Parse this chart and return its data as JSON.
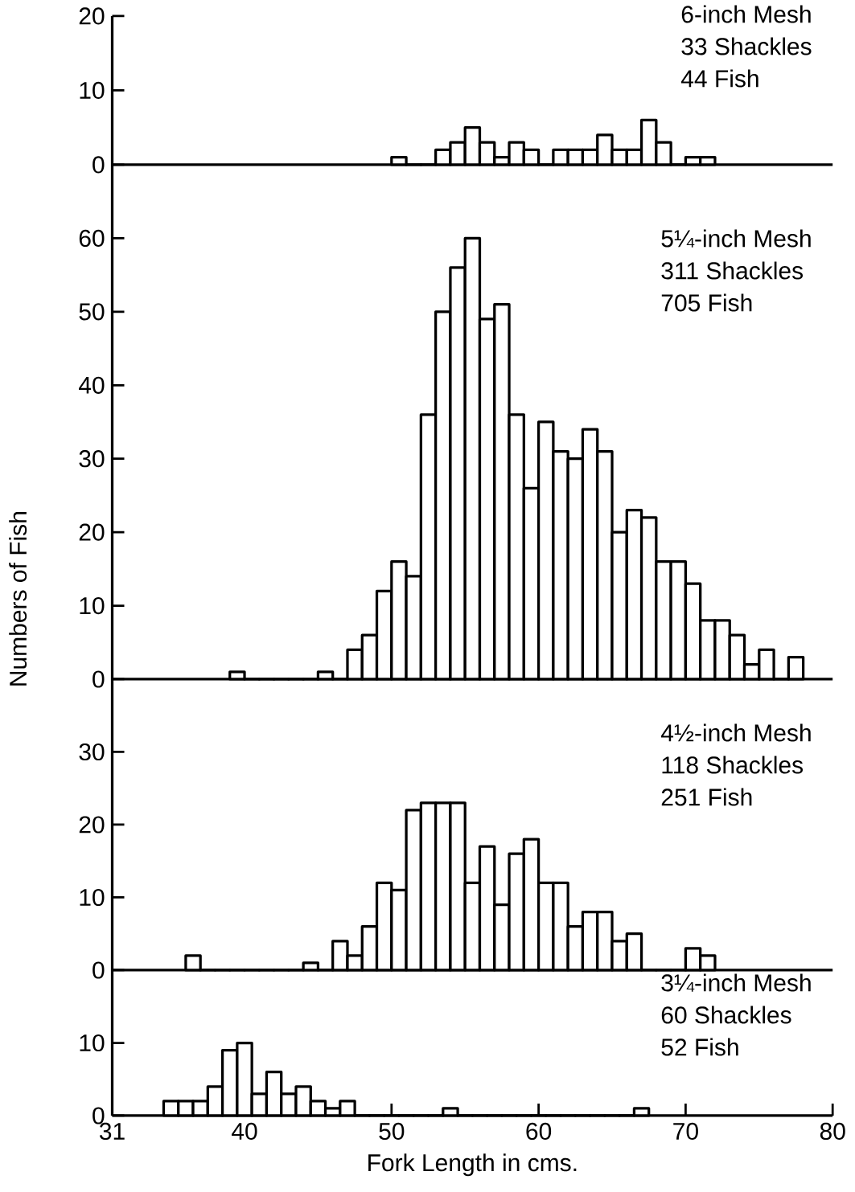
{
  "chart_data": [
    {
      "type": "histogram",
      "color": "#000000",
      "bins": [
        50,
        51,
        52,
        53,
        54,
        55,
        56,
        57,
        58,
        59,
        60,
        61,
        62,
        63,
        64,
        65,
        66,
        67,
        68,
        69,
        70,
        71,
        72
      ],
      "values": [
        1,
        0,
        0,
        2,
        3,
        5,
        3,
        1,
        3,
        2,
        0,
        2,
        2,
        2,
        4,
        2,
        2,
        6,
        3,
        0,
        1,
        1
      ],
      "xlim": [
        31,
        80
      ],
      "ylim": [
        0,
        20
      ],
      "xticks": [
        31,
        40,
        50,
        60,
        70,
        80
      ],
      "yticks": [
        0,
        10,
        20
      ],
      "tick_labels": "y",
      "annotations": [
        "6-inch Mesh",
        "33 Shackles",
        "44 Fish"
      ]
    },
    {
      "type": "histogram",
      "color": "#000000",
      "bins": [
        39,
        40,
        41,
        42,
        43,
        44,
        45,
        46,
        47,
        48,
        49,
        50,
        51,
        52,
        53,
        54,
        55,
        56,
        57,
        58,
        59,
        60,
        61,
        62,
        63,
        64,
        65,
        66,
        67,
        68,
        69,
        70,
        71,
        72,
        73,
        74,
        75,
        76,
        77,
        78
      ],
      "values": [
        1,
        0,
        0,
        0,
        0,
        0,
        1,
        0,
        4,
        6,
        12,
        16,
        14,
        36,
        50,
        56,
        60,
        49,
        51,
        36,
        26,
        35,
        31,
        30,
        34,
        31,
        20,
        23,
        22,
        16,
        16,
        13,
        8,
        8,
        6,
        2,
        4,
        0,
        3
      ],
      "xlim": [
        31,
        80
      ],
      "ylim": [
        0,
        70
      ],
      "xticks": [
        31,
        40,
        50,
        60,
        70,
        80
      ],
      "yticks": [
        0,
        10,
        20,
        30,
        40,
        50,
        60
      ],
      "tick_labels": "y",
      "ylabel": "Numbers of Fish",
      "annotations": [
        "5¼-inch Mesh",
        "311 Shackles",
        "705 Fish"
      ]
    },
    {
      "type": "histogram",
      "color": "#000000",
      "bins": [
        36,
        37,
        38,
        39,
        40,
        41,
        42,
        43,
        44,
        45,
        46,
        47,
        48,
        49,
        50,
        51,
        52,
        53,
        54,
        55,
        56,
        57,
        58,
        59,
        60,
        61,
        62,
        63,
        64,
        65,
        66,
        67,
        68,
        69,
        70,
        71,
        72
      ],
      "values": [
        2,
        0,
        0,
        0,
        0,
        0,
        0,
        0,
        1,
        0,
        4,
        2,
        6,
        12,
        11,
        22,
        23,
        23,
        23,
        12,
        17,
        9,
        16,
        18,
        12,
        12,
        6,
        8,
        8,
        4,
        5,
        0,
        0,
        0,
        3,
        2
      ],
      "xlim": [
        31,
        80
      ],
      "ylim": [
        0,
        40
      ],
      "xticks": [
        31,
        40,
        50,
        60,
        70,
        80
      ],
      "yticks": [
        0,
        10,
        20,
        30
      ],
      "tick_labels": "y",
      "annotations": [
        "4½-inch Mesh",
        "118 Shackles",
        "251 Fish"
      ]
    },
    {
      "type": "histogram",
      "color": "#000000",
      "bins": [
        34.5,
        35.5,
        36.5,
        37.5,
        38.5,
        39.5,
        40.5,
        41.5,
        42.5,
        43.5,
        44.5,
        45.5,
        46.5,
        47.5,
        48.5,
        49.5,
        50.5,
        51.5,
        52.5,
        53.5,
        54.5,
        55.5,
        56.5,
        57.5,
        58.5,
        59.5,
        60.5,
        61.5,
        62.5,
        63.5,
        64.5,
        65.5,
        66.5,
        67.5
      ],
      "values": [
        2,
        2,
        2,
        4,
        9,
        10,
        3,
        6,
        3,
        4,
        2,
        1,
        2,
        0,
        0,
        0,
        0,
        0,
        0,
        1,
        0,
        0,
        0,
        0,
        0,
        0,
        0,
        0,
        0,
        0,
        0,
        0,
        1
      ],
      "xlim": [
        31,
        80
      ],
      "ylim": [
        0,
        20
      ],
      "xticks": [
        31,
        40,
        50,
        60,
        70,
        80
      ],
      "yticks": [
        0,
        10
      ],
      "xlabel": "Fork Length in cms.",
      "annotations": [
        "3¼-inch Mesh",
        "60 Shackles",
        "52 Fish"
      ]
    }
  ]
}
